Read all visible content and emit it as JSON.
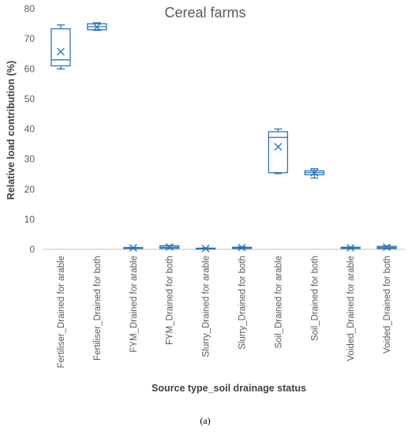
{
  "chart_data": {
    "type": "box",
    "title": "Cereal farms",
    "xlabel": "Source type_soil drainage status",
    "ylabel": "Relative load contribution (%)",
    "ylim": [
      0,
      80
    ],
    "yticks": [
      0,
      10,
      20,
      30,
      40,
      50,
      60,
      70,
      80
    ],
    "grid": false,
    "categories": [
      "Fertiliser_Drained for arable",
      "Fertiliser_Drained for both",
      "FYM_Drained for arable",
      "FYM_Drained for both",
      "Slurry_Drained for arable",
      "Slurry_Drained for both",
      "Soil_Drained for arable",
      "Soil_Drained for both",
      "Voided_Drained for arable",
      "Voided_Drained for both"
    ],
    "boxes": [
      {
        "min": 60.0,
        "q1": 61.0,
        "median": 63.0,
        "q3": 73.3,
        "max": 74.6,
        "mean": 65.7
      },
      {
        "min": 72.8,
        "q1": 73.0,
        "median": 74.0,
        "q3": 75.0,
        "max": 75.3,
        "mean": 73.9
      },
      {
        "min": 0.2,
        "q1": 0.3,
        "median": 0.5,
        "q3": 0.6,
        "max": 0.7,
        "mean": 0.5
      },
      {
        "min": 0.2,
        "q1": 0.3,
        "median": 0.7,
        "q3": 1.2,
        "max": 1.3,
        "mean": 0.8
      },
      {
        "min": 0.1,
        "q1": 0.2,
        "median": 0.3,
        "q3": 0.4,
        "max": 0.5,
        "mean": 0.3
      },
      {
        "min": 0.2,
        "q1": 0.3,
        "median": 0.5,
        "q3": 0.7,
        "max": 0.9,
        "mean": 0.6
      },
      {
        "min": 25.2,
        "q1": 25.5,
        "median": 37.2,
        "q3": 39.1,
        "max": 40.0,
        "mean": 34.1
      },
      {
        "min": 23.7,
        "q1": 24.8,
        "median": 25.5,
        "q3": 26.1,
        "max": 26.8,
        "mean": 25.5
      },
      {
        "min": 0.2,
        "q1": 0.3,
        "median": 0.5,
        "q3": 0.7,
        "max": 0.8,
        "mean": 0.5
      },
      {
        "min": 0.2,
        "q1": 0.3,
        "median": 0.6,
        "q3": 1.0,
        "max": 1.2,
        "mean": 0.7
      }
    ],
    "box_color": "#2E75B6",
    "axis_color": "#BFBFBF"
  },
  "caption": "(a)"
}
